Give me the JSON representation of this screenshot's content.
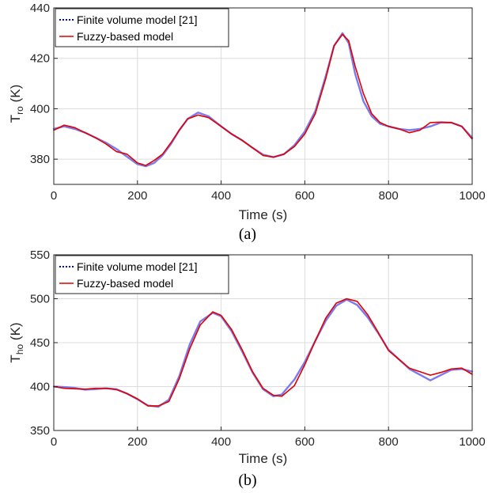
{
  "chart_data": [
    {
      "type": "line",
      "caption": "(a)",
      "xlabel": "Time (s)",
      "ylabel_main": "T",
      "ylabel_sub": "ro",
      "ylabel_unit": " (K)",
      "xlim": [
        0,
        1000
      ],
      "ylim": [
        370,
        440
      ],
      "xticks": [
        0,
        200,
        400,
        600,
        800,
        1000
      ],
      "yticks": [
        380,
        400,
        420,
        440
      ],
      "grid": true,
      "legend_position": "top-left",
      "series": [
        {
          "name": "Finite volume model [21]",
          "color": "#0000cc",
          "style": "dotted",
          "x": [
            0,
            25,
            50,
            75,
            100,
            125,
            150,
            175,
            200,
            220,
            240,
            260,
            280,
            300,
            320,
            345,
            370,
            400,
            425,
            450,
            475,
            500,
            525,
            550,
            575,
            600,
            625,
            650,
            670,
            690,
            705,
            720,
            740,
            760,
            780,
            800,
            825,
            850,
            875,
            900,
            925,
            950,
            975,
            1000
          ],
          "values": [
            392,
            393,
            392,
            390.5,
            388.5,
            386.5,
            384,
            381,
            378,
            377.2,
            378.5,
            381.5,
            386,
            391.5,
            396,
            398.5,
            397,
            393,
            390,
            387.5,
            384.5,
            381.8,
            380.8,
            382,
            385.5,
            391,
            399,
            413,
            425,
            430,
            426,
            414,
            403,
            397,
            394,
            393,
            392,
            391.5,
            392,
            393,
            394.5,
            394.5,
            393,
            388.5
          ]
        },
        {
          "name": "Fuzzy-based model",
          "color": "#e00000",
          "style": "solid",
          "x": [
            0,
            25,
            50,
            75,
            100,
            125,
            150,
            175,
            200,
            220,
            240,
            260,
            280,
            300,
            320,
            345,
            370,
            400,
            425,
            450,
            475,
            500,
            525,
            550,
            575,
            600,
            625,
            650,
            670,
            690,
            705,
            720,
            740,
            760,
            780,
            800,
            825,
            850,
            875,
            900,
            925,
            950,
            975,
            1000
          ],
          "values": [
            391.5,
            393.5,
            392.5,
            390.5,
            388.5,
            386,
            383,
            382,
            378.5,
            377.5,
            379.5,
            382,
            386.5,
            391.5,
            396,
            397.5,
            396.5,
            393,
            390,
            387.5,
            384.5,
            381.5,
            380.8,
            382,
            385,
            390,
            398,
            412,
            425,
            429.5,
            427,
            417,
            406,
            398,
            394.5,
            393,
            392,
            390.5,
            391.5,
            394.5,
            394.7,
            394.5,
            393,
            388
          ]
        }
      ]
    },
    {
      "type": "line",
      "caption": "(b)",
      "xlabel": "Time (s)",
      "ylabel_main": "T",
      "ylabel_sub": "ho",
      "ylabel_unit": " (K)",
      "xlim": [
        0,
        1000
      ],
      "ylim": [
        350,
        550
      ],
      "xticks": [
        0,
        200,
        400,
        600,
        800,
        1000
      ],
      "yticks": [
        350,
        400,
        450,
        500,
        550
      ],
      "grid": true,
      "legend_position": "top-left",
      "series": [
        {
          "name": "Finite volume model [21]",
          "color": "#0000cc",
          "style": "dotted",
          "x": [
            0,
            25,
            50,
            75,
            100,
            125,
            150,
            175,
            200,
            225,
            250,
            275,
            300,
            325,
            350,
            380,
            400,
            425,
            450,
            475,
            500,
            525,
            545,
            575,
            600,
            625,
            650,
            675,
            700,
            725,
            750,
            775,
            800,
            850,
            900,
            925,
            950,
            975,
            1000
          ],
          "values": [
            400,
            399.5,
            398.5,
            396.5,
            397,
            398,
            397,
            392,
            385.5,
            378.5,
            377,
            385,
            412,
            448,
            474,
            484,
            480,
            463,
            440,
            416,
            397,
            389,
            391,
            408,
            428,
            452,
            475,
            492,
            499,
            493,
            479,
            461,
            442,
            420,
            407,
            413,
            419,
            420,
            417
          ]
        },
        {
          "name": "Fuzzy-based model",
          "color": "#e00000",
          "style": "solid",
          "x": [
            0,
            25,
            50,
            75,
            100,
            125,
            150,
            175,
            200,
            225,
            250,
            275,
            300,
            325,
            350,
            380,
            400,
            425,
            450,
            475,
            500,
            525,
            545,
            575,
            600,
            625,
            650,
            675,
            700,
            725,
            750,
            775,
            800,
            850,
            900,
            925,
            950,
            975,
            1000
          ],
          "values": [
            400,
            398,
            397.5,
            397,
            398,
            398,
            396.5,
            392,
            386,
            378,
            378,
            383,
            409,
            443,
            470,
            485,
            481,
            465,
            442,
            417,
            398,
            390,
            389,
            401,
            425,
            452,
            478,
            495,
            500,
            497,
            482,
            462,
            441,
            421,
            413,
            416,
            420,
            421,
            414
          ]
        }
      ]
    }
  ]
}
